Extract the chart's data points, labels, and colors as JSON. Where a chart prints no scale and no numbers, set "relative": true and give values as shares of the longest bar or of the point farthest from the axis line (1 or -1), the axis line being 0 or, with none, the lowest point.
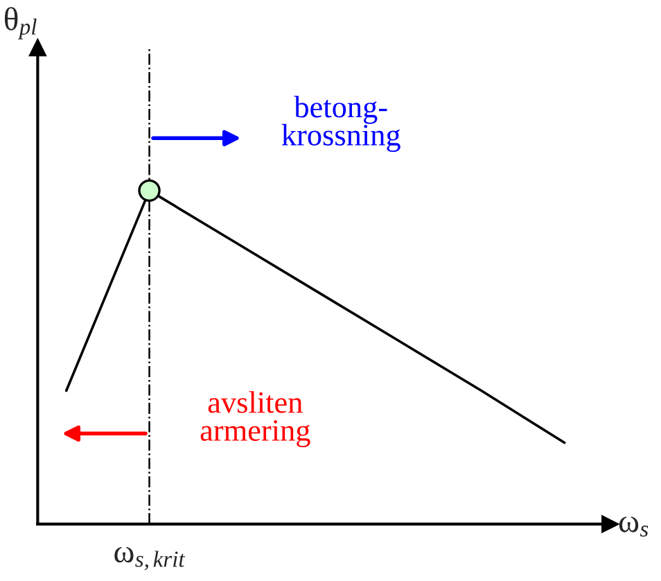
{
  "chart_data": [
    {
      "type": "line",
      "relative": true,
      "xlabel": "ω$_{s}$",
      "ylabel": "θ$_{pl}$",
      "categories": [
        null,
        null,
        null,
        null,
        null,
        null,
        null
      ],
      "series": [
        {
          "type": "line",
          "color": "#000000",
          "values": [
            0.4,
            1,
            0.85,
            0.7,
            0.55,
            0.4,
            0.244
          ]
        }
      ],
      "annotations": [
        "betong-\nkrossning",
        "avsliten\narmering",
        "ω$_{s,krit}$"
      ]
    }
  ]
}
